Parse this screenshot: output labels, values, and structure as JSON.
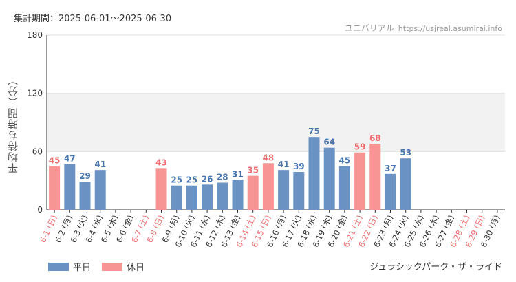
{
  "header": {
    "period_label": "集計期間：2025-06-01～2025-06-30",
    "source_name": "ユニバリアル",
    "source_url": "https://usjreal.asumirai.info"
  },
  "footer": {
    "legend": [
      {
        "label": "平日",
        "color": "#6a93c4"
      },
      {
        "label": "休日",
        "color": "#f79594"
      }
    ],
    "attraction": "ジュラシックパーク・ザ・ライド"
  },
  "colors": {
    "weekday": "#6a93c4",
    "holiday": "#f79594",
    "weekday_text": "#4a76ad",
    "holiday_text": "#ee6f73"
  },
  "chart_data": {
    "type": "bar",
    "ylabel": "平均待ち時間（分）",
    "ylim": [
      0,
      180
    ],
    "yticks": [
      0,
      60,
      120,
      180
    ],
    "shaded_band": [
      60,
      120
    ],
    "grid": true,
    "legend_position": "bottom-left",
    "categories": [
      "6-1 (日)",
      "6-2 (月)",
      "6-3 (火)",
      "6-4 (水)",
      "6-5 (木)",
      "6-6 (金)",
      "6-7 (土)",
      "6-8 (日)",
      "6-9 (月)",
      "6-10 (火)",
      "6-11 (水)",
      "6-12 (木)",
      "6-13 (金)",
      "6-14 (土)",
      "6-15 (日)",
      "6-16 (月)",
      "6-17 (火)",
      "6-18 (水)",
      "6-19 (木)",
      "6-20 (金)",
      "6-21 (土)",
      "6-22 (日)",
      "6-23 (月)",
      "6-24 (火)",
      "6-25 (水)",
      "6-26 (木)",
      "6-27 (金)",
      "6-28 (土)",
      "6-29 (日)",
      "6-30 (月)"
    ],
    "values": [
      45,
      47,
      29,
      41,
      null,
      null,
      null,
      43,
      25,
      25,
      26,
      28,
      31,
      35,
      48,
      41,
      39,
      75,
      64,
      45,
      59,
      68,
      37,
      53,
      null,
      null,
      null,
      null,
      null,
      null
    ],
    "holiday": [
      true,
      false,
      false,
      false,
      false,
      false,
      true,
      true,
      false,
      false,
      false,
      false,
      false,
      true,
      true,
      false,
      false,
      false,
      false,
      false,
      true,
      true,
      false,
      false,
      false,
      false,
      false,
      true,
      true,
      false
    ],
    "series": [
      {
        "name": "平日"
      },
      {
        "name": "休日"
      }
    ]
  }
}
